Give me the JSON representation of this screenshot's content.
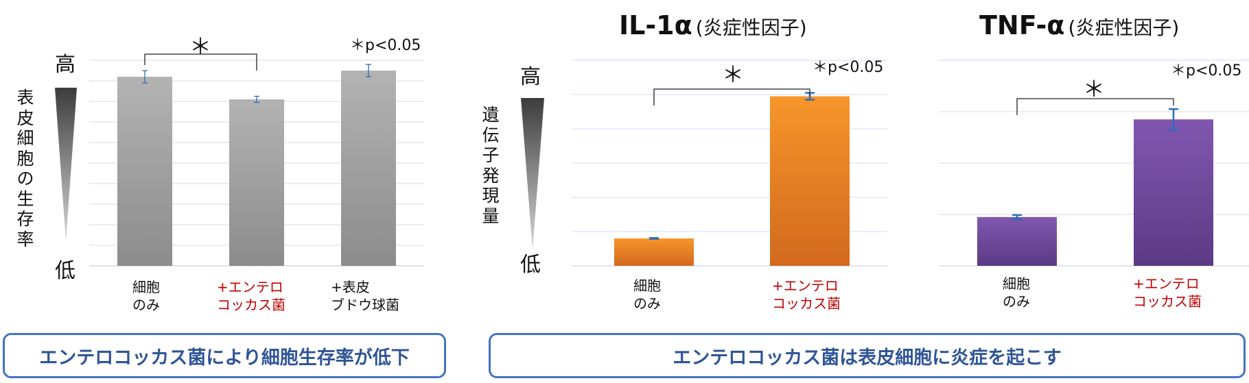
{
  "colors": {
    "gray_bar": "#a6a6a6",
    "orange_bar": "#f28e2b",
    "purple_bar": "#7b55a5",
    "error_bar": "#2e6cb5",
    "box_border": "#4472c4",
    "box_text": "#2f5597",
    "red_text": "#c00000"
  },
  "chart_data": [
    {
      "type": "bar",
      "title": "",
      "ylabel": "表皮細胞の生存率",
      "y_high_label": "高",
      "y_low_label": "低",
      "categories": [
        "細胞\nのみ",
        "+エンテロ\nコッカス菌",
        "+表皮\nブドウ球菌"
      ],
      "series": [
        {
          "values": [
            0.92,
            0.81,
            0.95
          ],
          "errors": [
            0.03,
            0.015,
            0.03
          ]
        }
      ],
      "ylim": [
        0,
        1
      ],
      "grid": true,
      "significance": {
        "between": [
          0,
          1
        ],
        "symbol": "＊"
      },
      "note": "＊p<0.05"
    },
    {
      "type": "bar",
      "title": "IL-1α",
      "title_suffix": "(炎症性因子)",
      "ylabel": "遺伝子発現量",
      "y_high_label": "高",
      "y_low_label": "低",
      "categories": [
        "細胞\nのみ",
        "+エンテロ\nコッカス菌"
      ],
      "series": [
        {
          "values": [
            0.16,
            0.99
          ],
          "errors": [
            0.0025,
            0.02
          ]
        }
      ],
      "ylim": [
        0,
        1.2
      ],
      "grid": true,
      "significance": {
        "between": [
          0,
          1
        ],
        "symbol": "＊"
      },
      "note": "＊p<0.05"
    },
    {
      "type": "bar",
      "title": "TNF-α",
      "title_suffix": "(炎症性因子)",
      "ylabel": "",
      "categories": [
        "細胞\nのみ",
        "+エンテロ\nコッカス菌"
      ],
      "series": [
        {
          "values": [
            0.19,
            0.57
          ],
          "errors": [
            0.008,
            0.04
          ]
        }
      ],
      "ylim": [
        0,
        0.8
      ],
      "grid": true,
      "significance": {
        "between": [
          0,
          1
        ],
        "symbol": "＊"
      },
      "note": "＊p<0.05"
    }
  ],
  "conclusions": {
    "left": "エンテロコッカス菌により細胞生存率が低下",
    "right": "エンテロコッカス菌は表皮細胞に炎症を起こす"
  }
}
